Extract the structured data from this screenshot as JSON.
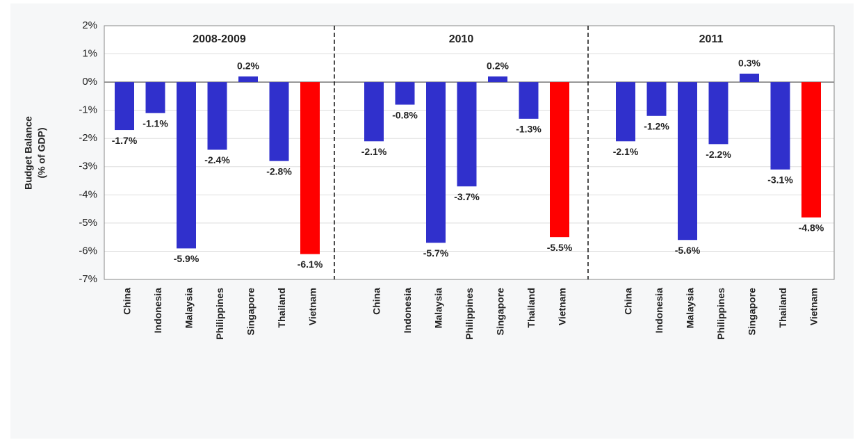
{
  "chart_data": [
    {
      "type": "bar",
      "title": "2008-2009",
      "y_label": "Budget Balance",
      "y_label_2": "(% of GDP)",
      "categories": [
        "China",
        "Indonesia",
        "Malaysia",
        "Philippines",
        "Singapore",
        "Thailand",
        "Vietnam"
      ],
      "values": [
        -1.7,
        -1.1,
        -5.9,
        -2.4,
        0.2,
        -2.8,
        -6.1
      ],
      "value_labels": [
        "-1.7%",
        "-1.1%",
        "-5.9%",
        "-2.4%",
        "0.2%",
        "-2.8%",
        "-6.1%"
      ],
      "colors": [
        "#3030cc",
        "#3030cc",
        "#3030cc",
        "#3030cc",
        "#3030cc",
        "#3030cc",
        "#ff0000"
      ],
      "ylim": [
        -7,
        2
      ],
      "yticks": [
        {
          "value": -7,
          "label": "-7%"
        },
        {
          "value": -6,
          "label": "-6%"
        },
        {
          "value": -5,
          "label": "-5%"
        },
        {
          "value": -4,
          "label": "-4%"
        },
        {
          "value": -3,
          "label": "-3%"
        },
        {
          "value": -2,
          "label": "-2%"
        },
        {
          "value": -1,
          "label": "-1%"
        },
        {
          "value": 0,
          "label": "0%"
        },
        {
          "value": 1,
          "label": "1%"
        },
        {
          "value": 2,
          "label": "2%"
        }
      ],
      "grid": true
    },
    {
      "type": "bar",
      "title": "2010",
      "categories": [
        "China",
        "Indonesia",
        "Malaysia",
        "Philippines",
        "Singapore",
        "Thailand",
        "Vietnam"
      ],
      "values": [
        -2.1,
        -0.8,
        -5.7,
        -3.7,
        0.2,
        -1.3,
        -5.5
      ],
      "value_labels": [
        "-2.1%",
        "-0.8%",
        "-5.7%",
        "-3.7%",
        "0.2%",
        "-1.3%",
        "-5.5%"
      ],
      "colors": [
        "#3030cc",
        "#3030cc",
        "#3030cc",
        "#3030cc",
        "#3030cc",
        "#3030cc",
        "#ff0000"
      ],
      "ylim": [
        -7,
        2
      ]
    },
    {
      "type": "bar",
      "title": "2011",
      "categories": [
        "China",
        "Indonesia",
        "Malaysia",
        "Philippines",
        "Singapore",
        "Thailand",
        "Vietnam"
      ],
      "values": [
        -2.1,
        -1.2,
        -5.6,
        -2.2,
        0.3,
        -3.1,
        -4.8
      ],
      "value_labels": [
        "-2.1%",
        "-1.2%",
        "-5.6%",
        "-2.2%",
        "0.3%",
        "-3.1%",
        "-4.8%"
      ],
      "colors": [
        "#3030cc",
        "#3030cc",
        "#3030cc",
        "#3030cc",
        "#3030cc",
        "#3030cc",
        "#ff0000"
      ],
      "ylim": [
        -7,
        2
      ]
    }
  ]
}
